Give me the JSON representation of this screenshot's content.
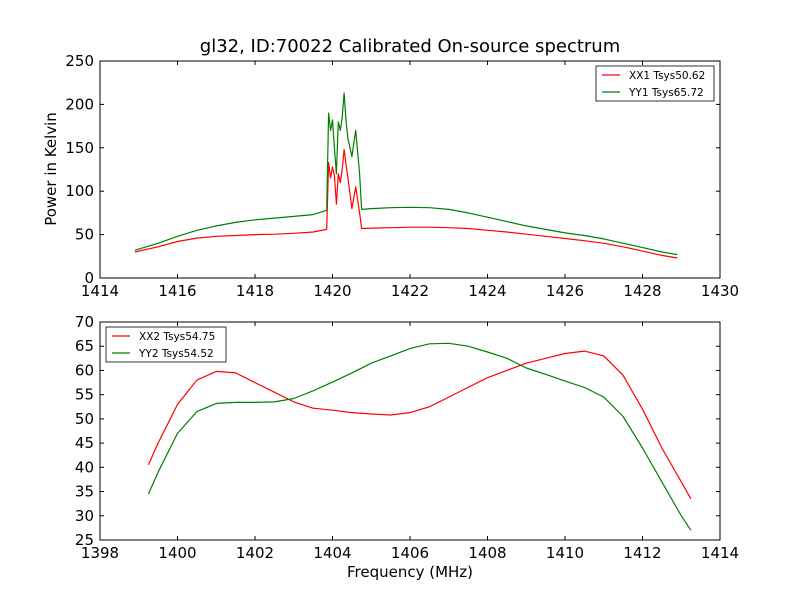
{
  "chart_data": [
    {
      "type": "line",
      "title": "gl32, ID:70022 Calibrated On-source spectrum",
      "xlabel": "",
      "ylabel": "Power in Kelvin",
      "xlim": [
        1414,
        1430
      ],
      "ylim": [
        0,
        250
      ],
      "xticks": [
        "1414",
        "1416",
        "1418",
        "1420",
        "1422",
        "1424",
        "1426",
        "1428",
        "1430"
      ],
      "yticks": [
        "0",
        "50",
        "100",
        "150",
        "200",
        "250"
      ],
      "legend_position": "top-right",
      "series": [
        {
          "name": "XX1 Tsys50.62",
          "color": "#ff0000",
          "x": [
            1414.9,
            1415.5,
            1416.0,
            1416.5,
            1417.0,
            1417.5,
            1418.0,
            1418.5,
            1419.0,
            1419.5,
            1419.85,
            1419.9,
            1419.95,
            1420.0,
            1420.05,
            1420.1,
            1420.15,
            1420.2,
            1420.25,
            1420.3,
            1420.35,
            1420.4,
            1420.5,
            1420.6,
            1420.7,
            1420.75,
            1421.0,
            1421.5,
            1422.0,
            1422.5,
            1423.0,
            1423.5,
            1424.0,
            1424.5,
            1425.0,
            1425.5,
            1426.0,
            1426.5,
            1427.0,
            1427.5,
            1428.0,
            1428.5,
            1428.9
          ],
          "values": [
            30,
            36,
            42,
            46,
            48,
            49,
            50,
            50.5,
            51.5,
            53,
            56,
            133,
            115,
            128,
            118,
            85,
            120,
            110,
            125,
            148,
            130,
            115,
            80,
            105,
            75,
            57,
            57.5,
            58,
            58.5,
            58.5,
            58,
            57,
            55,
            53,
            50.5,
            48,
            45.5,
            43,
            40,
            36,
            31,
            26,
            23
          ]
        },
        {
          "name": "YY1 Tsys65.72",
          "color": "#007f00",
          "x": [
            1414.9,
            1415.5,
            1416.0,
            1416.5,
            1417.0,
            1417.5,
            1418.0,
            1418.5,
            1419.0,
            1419.5,
            1419.85,
            1419.9,
            1419.95,
            1420.0,
            1420.05,
            1420.1,
            1420.15,
            1420.2,
            1420.25,
            1420.3,
            1420.35,
            1420.4,
            1420.5,
            1420.6,
            1420.7,
            1420.75,
            1421.0,
            1421.5,
            1422.0,
            1422.5,
            1423.0,
            1423.5,
            1424.0,
            1424.5,
            1425.0,
            1425.5,
            1426.0,
            1426.5,
            1427.0,
            1427.5,
            1428.0,
            1428.5,
            1428.9
          ],
          "values": [
            32,
            40,
            48,
            55,
            60,
            64,
            67,
            69,
            71,
            73,
            78,
            190,
            170,
            182,
            150,
            120,
            180,
            170,
            185,
            213,
            180,
            160,
            140,
            170,
            120,
            79,
            80,
            81,
            81.5,
            81,
            79,
            75,
            70,
            65,
            60,
            56,
            52,
            49,
            45,
            40,
            35,
            30,
            27
          ]
        }
      ]
    },
    {
      "type": "line",
      "title": "",
      "xlabel": "Frequency (MHz)",
      "ylabel": "",
      "xlim": [
        1398,
        1414
      ],
      "ylim": [
        25,
        70
      ],
      "xticks": [
        "1398",
        "1400",
        "1402",
        "1404",
        "1406",
        "1408",
        "1410",
        "1412",
        "1414"
      ],
      "yticks": [
        "25",
        "30",
        "35",
        "40",
        "45",
        "50",
        "55",
        "60",
        "65",
        "70"
      ],
      "legend_position": "top-left",
      "series": [
        {
          "name": "XX2 Tsys54.75",
          "color": "#ff0000",
          "x": [
            1399.25,
            1399.5,
            1400.0,
            1400.5,
            1401.0,
            1401.5,
            1402.0,
            1402.5,
            1403.0,
            1403.5,
            1404.0,
            1404.5,
            1405.0,
            1405.5,
            1406.0,
            1406.5,
            1407.0,
            1407.5,
            1408.0,
            1408.5,
            1409.0,
            1409.5,
            1410.0,
            1410.5,
            1411.0,
            1411.5,
            1412.0,
            1412.5,
            1413.0,
            1413.25
          ],
          "values": [
            40.5,
            45,
            53,
            58,
            59.8,
            59.5,
            57.5,
            55.5,
            53.5,
            52.2,
            51.8,
            51.3,
            51,
            50.8,
            51.3,
            52.5,
            54.5,
            56.5,
            58.5,
            60,
            61.5,
            62.5,
            63.5,
            64,
            63,
            59,
            52,
            44,
            37,
            33.5
          ]
        },
        {
          "name": "YY2 Tsys54.52",
          "color": "#007f00",
          "x": [
            1399.25,
            1399.5,
            1400.0,
            1400.5,
            1401.0,
            1401.5,
            1402.0,
            1402.5,
            1403.0,
            1403.5,
            1404.0,
            1404.5,
            1405.0,
            1405.5,
            1406.0,
            1406.5,
            1407.0,
            1407.5,
            1408.0,
            1408.5,
            1409.0,
            1409.5,
            1410.0,
            1410.5,
            1411.0,
            1411.5,
            1412.0,
            1412.5,
            1413.0,
            1413.25
          ],
          "values": [
            34.5,
            39,
            47,
            51.5,
            53.2,
            53.4,
            53.4,
            53.5,
            54.2,
            55.8,
            57.6,
            59.5,
            61.5,
            63,
            64.5,
            65.5,
            65.6,
            65,
            63.8,
            62.5,
            60.5,
            59.2,
            57.8,
            56.5,
            54.5,
            50.5,
            44,
            37,
            30,
            27
          ]
        }
      ]
    }
  ]
}
